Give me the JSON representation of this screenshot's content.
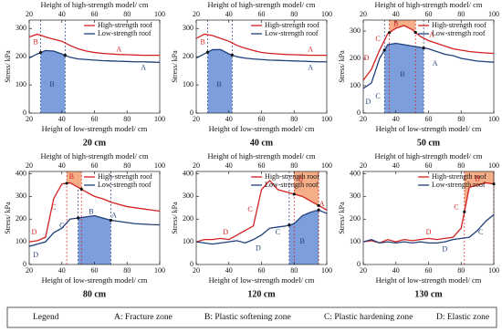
{
  "chart_data": [
    {
      "type": "line",
      "caption": "20 cm",
      "xlabel": "Height of low-strength model/ cm",
      "x2label": "Height of high-strength model/ cm",
      "ylabel": "Stress/ kPa",
      "x": [
        20,
        25,
        30,
        35,
        40,
        45,
        50,
        55,
        60,
        65,
        70,
        75,
        80,
        85,
        90,
        95,
        100
      ],
      "xlim": [
        20,
        100
      ],
      "xticks": [
        20,
        40,
        60,
        80,
        100
      ],
      "x2lim": [
        20,
        100
      ],
      "x2ticks": [
        20,
        40,
        60,
        80,
        100
      ],
      "ylim": [
        0,
        330
      ],
      "yticks": [
        0,
        100,
        200,
        300
      ],
      "series": [
        {
          "name": "High-strength roof",
          "color": "#d42020",
          "values": [
            270,
            280,
            270,
            262,
            255,
            240,
            228,
            220,
            215,
            212,
            210,
            208,
            207,
            206,
            205,
            205,
            205
          ]
        },
        {
          "name": "Low-strength roof",
          "color": "#1f3f7a",
          "values": [
            195,
            210,
            222,
            220,
            210,
            198,
            192,
            190,
            188,
            186,
            185,
            184,
            183,
            182,
            182,
            181,
            180
          ]
        }
      ],
      "zones": [
        {
          "x0": 27,
          "x1": 42,
          "series": 1,
          "fill": "below",
          "color": "#6f93d8"
        }
      ],
      "annotations": [
        {
          "text": "B",
          "x": 24,
          "y": 250,
          "color": "#d42020"
        },
        {
          "text": "A",
          "x": 75,
          "y": 225,
          "color": "#d42020"
        },
        {
          "text": "B",
          "x": 34,
          "y": 100,
          "color": "#1f3f7a"
        },
        {
          "text": "A",
          "x": 90,
          "y": 160,
          "color": "#1f3f7a"
        }
      ]
    },
    {
      "type": "line",
      "caption": "40 cm",
      "xlabel": "Height of low-strength model/ cm",
      "x2label": "Height of high-strength model/ cm",
      "ylabel": "Stress/ kPa",
      "x": [
        20,
        25,
        30,
        35,
        40,
        45,
        50,
        55,
        60,
        65,
        70,
        75,
        80,
        85,
        90,
        95,
        100
      ],
      "xlim": [
        20,
        100
      ],
      "xticks": [
        20,
        40,
        60,
        80,
        100
      ],
      "x2lim": [
        20,
        100
      ],
      "x2ticks": [
        20,
        40,
        60,
        80,
        100
      ],
      "ylim": [
        0,
        330
      ],
      "yticks": [
        0,
        100,
        200,
        300
      ],
      "series": [
        {
          "name": "High-strength roof",
          "color": "#d42020",
          "values": [
            265,
            280,
            275,
            265,
            255,
            240,
            230,
            222,
            215,
            212,
            210,
            208,
            207,
            206,
            205,
            205,
            205
          ]
        },
        {
          "name": "Low-strength roof",
          "color": "#1f3f7a",
          "values": [
            195,
            210,
            225,
            225,
            210,
            200,
            195,
            192,
            190,
            188,
            187,
            186,
            185,
            184,
            183,
            182,
            182
          ]
        }
      ],
      "zones": [
        {
          "x0": 27,
          "x1": 42,
          "series": 1,
          "fill": "below",
          "color": "#6f93d8"
        }
      ],
      "annotations": [
        {
          "text": "B",
          "x": 24,
          "y": 250,
          "color": "#d42020"
        },
        {
          "text": "A",
          "x": 90,
          "y": 225,
          "color": "#d42020"
        },
        {
          "text": "B",
          "x": 34,
          "y": 100,
          "color": "#1f3f7a"
        },
        {
          "text": "A",
          "x": 90,
          "y": 160,
          "color": "#1f3f7a"
        }
      ]
    },
    {
      "type": "line",
      "caption": "50 cm",
      "xlabel": "Height of low-strength model/ cm",
      "x2label": "Height of high-strength model/ cm",
      "ylabel": "Stress/ kPa",
      "x": [
        20,
        25,
        30,
        35,
        40,
        45,
        50,
        55,
        60,
        65,
        70,
        75,
        80,
        85,
        90,
        95,
        100
      ],
      "xlim": [
        20,
        100
      ],
      "xticks": [
        20,
        40,
        60,
        80,
        100
      ],
      "x2lim": [
        20,
        100
      ],
      "x2ticks": [
        20,
        40,
        60,
        80,
        100
      ],
      "ylim": [
        0,
        340
      ],
      "yticks": [
        0,
        100,
        200,
        300
      ],
      "series": [
        {
          "name": "High-strength roof",
          "color": "#d42020",
          "values": [
            120,
            160,
            230,
            290,
            310,
            320,
            305,
            280,
            265,
            255,
            245,
            235,
            230,
            225,
            222,
            220,
            218
          ]
        },
        {
          "name": "Low-strength roof",
          "color": "#1f3f7a",
          "values": [
            90,
            110,
            200,
            250,
            255,
            250,
            245,
            240,
            235,
            225,
            215,
            210,
            200,
            195,
            190,
            188,
            186
          ]
        }
      ],
      "zones": [
        {
          "x0": 33,
          "x1": 57,
          "series": 1,
          "fill": "below",
          "color": "#6f93d8"
        },
        {
          "x0": 36,
          "x1": 52,
          "series": 0,
          "fill": "above",
          "color": "#f4a57a"
        }
      ],
      "annotations": [
        {
          "text": "D",
          "x": 22,
          "y": 200,
          "color": "#d42020"
        },
        {
          "text": "C",
          "x": 29,
          "y": 270,
          "color": "#d42020"
        },
        {
          "text": "B",
          "x": 40,
          "y": 325,
          "color": "#d42020"
        },
        {
          "text": "A",
          "x": 62,
          "y": 285,
          "color": "#d42020"
        },
        {
          "text": "D",
          "x": 23,
          "y": 40,
          "color": "#1f3f7a"
        },
        {
          "text": "C",
          "x": 29,
          "y": 60,
          "color": "#1f3f7a"
        },
        {
          "text": "B",
          "x": 44,
          "y": 140,
          "color": "#1f3f7a"
        },
        {
          "text": "A",
          "x": 64,
          "y": 180,
          "color": "#1f3f7a"
        }
      ]
    },
    {
      "type": "line",
      "caption": "80 cm",
      "xlabel": "Height of low-strength model/ cm",
      "x2label": "Height of high-strength model/ cm",
      "ylabel": "Stress/ kPa",
      "x": [
        20,
        25,
        30,
        35,
        40,
        45,
        50,
        55,
        60,
        65,
        70,
        75,
        80,
        85,
        90,
        95,
        100
      ],
      "xlim": [
        20,
        100
      ],
      "xticks": [
        20,
        40,
        60,
        80,
        100
      ],
      "x2lim": [
        20,
        100
      ],
      "x2ticks": [
        20,
        40,
        60,
        80,
        100
      ],
      "ylim": [
        0,
        410
      ],
      "yticks": [
        0,
        100,
        200,
        300,
        400
      ],
      "series": [
        {
          "name": "High-strength roof",
          "color": "#d42020",
          "values": [
            100,
            105,
            120,
            290,
            355,
            360,
            340,
            320,
            300,
            290,
            275,
            265,
            255,
            250,
            245,
            240,
            235
          ]
        },
        {
          "name": "Low-strength roof",
          "color": "#1f3f7a",
          "values": [
            80,
            90,
            100,
            140,
            160,
            200,
            205,
            210,
            215,
            205,
            195,
            190,
            185,
            180,
            178,
            176,
            175
          ]
        }
      ],
      "zones": [
        {
          "x0": 50,
          "x1": 70,
          "series": 1,
          "fill": "below",
          "color": "#6f93d8"
        },
        {
          "x0": 43,
          "x1": 52,
          "series": 0,
          "fill": "above",
          "color": "#f4a57a"
        }
      ],
      "annotations": [
        {
          "text": "D",
          "x": 23,
          "y": 140,
          "color": "#d42020"
        },
        {
          "text": "C",
          "x": 35,
          "y": 250,
          "color": "#d42020"
        },
        {
          "text": "B",
          "x": 46,
          "y": 385,
          "color": "#d42020"
        },
        {
          "text": "D",
          "x": 24,
          "y": 40,
          "color": "#1f3f7a"
        },
        {
          "text": "C",
          "x": 40,
          "y": 170,
          "color": "#1f3f7a"
        },
        {
          "text": "B",
          "x": 58,
          "y": 230,
          "color": "#1f3f7a"
        },
        {
          "text": "A",
          "x": 72,
          "y": 215,
          "color": "#1f3f7a"
        }
      ]
    },
    {
      "type": "line",
      "caption": "120 cm",
      "xlabel": "Height of low-strength model/ cm",
      "x2label": "Height of high-strength model/ cm",
      "ylabel": "Stress/ kPa",
      "x": [
        20,
        25,
        30,
        35,
        40,
        45,
        50,
        55,
        60,
        65,
        70,
        75,
        80,
        85,
        90,
        95,
        100
      ],
      "xlim": [
        20,
        100
      ],
      "xticks": [
        20,
        40,
        60,
        80,
        100
      ],
      "x2lim": [
        20,
        100
      ],
      "x2ticks": [
        20,
        40,
        60,
        80,
        100
      ],
      "ylim": [
        0,
        410
      ],
      "yticks": [
        0,
        100,
        200,
        300,
        400
      ],
      "series": [
        {
          "name": "High-strength roof",
          "color": "#d42020",
          "values": [
            100,
            110,
            110,
            115,
            110,
            130,
            150,
            170,
            330,
            370,
            330,
            320,
            310,
            300,
            280,
            260,
            240
          ]
        },
        {
          "name": "Low-strength roof",
          "color": "#1f3f7a",
          "values": [
            100,
            95,
            90,
            95,
            100,
            105,
            95,
            110,
            130,
            160,
            165,
            170,
            180,
            215,
            230,
            240,
            225
          ]
        }
      ],
      "zones": [
        {
          "x0": 77,
          "x1": 95,
          "series": 1,
          "fill": "below",
          "color": "#6f93d8"
        },
        {
          "x0": 80,
          "x1": 95,
          "series": 0,
          "fill": "above",
          "color": "#f4a57a"
        }
      ],
      "annotations": [
        {
          "text": "D",
          "x": 38,
          "y": 140,
          "color": "#d42020"
        },
        {
          "text": "C",
          "x": 53,
          "y": 240,
          "color": "#d42020"
        },
        {
          "text": "B",
          "x": 84,
          "y": 375,
          "color": "#d42020"
        },
        {
          "text": "A",
          "x": 97,
          "y": 265,
          "color": "#d42020"
        },
        {
          "text": "D",
          "x": 58,
          "y": 70,
          "color": "#1f3f7a"
        },
        {
          "text": "C",
          "x": 70,
          "y": 140,
          "color": "#1f3f7a"
        },
        {
          "text": "B",
          "x": 85,
          "y": 100,
          "color": "#1f3f7a"
        }
      ]
    },
    {
      "type": "line",
      "caption": "130 cm",
      "xlabel": "Height of low-strength model/ cm",
      "x2label": "Height of high-strength model/ cm",
      "ylabel": "Stress/ kPa",
      "x": [
        20,
        25,
        30,
        35,
        40,
        45,
        50,
        55,
        60,
        65,
        70,
        75,
        80,
        85,
        90,
        95,
        100
      ],
      "xlim": [
        20,
        100
      ],
      "xticks": [
        20,
        40,
        60,
        80,
        100
      ],
      "x2lim": [
        20,
        100
      ],
      "x2ticks": [
        20,
        40,
        60,
        80,
        100
      ],
      "ylim": [
        0,
        410
      ],
      "yticks": [
        0,
        100,
        200,
        300,
        400
      ],
      "series": [
        {
          "name": "High-strength roof",
          "color": "#d42020",
          "values": [
            100,
            105,
            95,
            110,
            100,
            110,
            105,
            110,
            115,
            110,
            115,
            120,
            160,
            340,
            350,
            360,
            355
          ]
        },
        {
          "name": "Low-strength roof",
          "color": "#1f3f7a",
          "values": [
            100,
            110,
            95,
            100,
            95,
            100,
            95,
            100,
            95,
            95,
            100,
            110,
            115,
            120,
            150,
            190,
            220
          ]
        }
      ],
      "zones": [
        {
          "x0": 82,
          "x1": 100,
          "series": 0,
          "fill": "above",
          "color": "#f4a57a"
        }
      ],
      "annotations": [
        {
          "text": "D",
          "x": 60,
          "y": 140,
          "color": "#d42020"
        },
        {
          "text": "C",
          "x": 77,
          "y": 250,
          "color": "#d42020"
        },
        {
          "text": "B",
          "x": 90,
          "y": 375,
          "color": "#d42020"
        },
        {
          "text": "D",
          "x": 70,
          "y": 65,
          "color": "#1f3f7a"
        },
        {
          "text": "C",
          "x": 92,
          "y": 140,
          "color": "#1f3f7a"
        }
      ]
    }
  ],
  "legend": {
    "title": "Legend",
    "items": [
      "A: Fracture zone",
      "B: Plastic softening zone",
      "C: Plastic hardening zone",
      "D: Elastic zone"
    ]
  }
}
